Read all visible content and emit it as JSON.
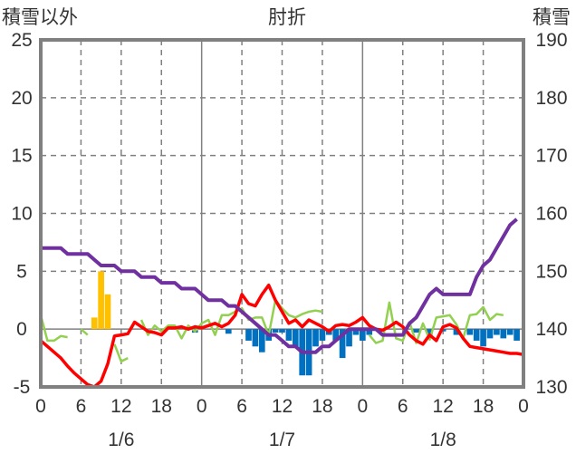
{
  "chart_data": {
    "type": "bar+line",
    "title": "肘折",
    "left_axis_label": "積雪以外",
    "right_axis_label": "積雪",
    "left_ylim": [
      -5,
      25
    ],
    "left_yticks": [
      -5,
      0,
      5,
      10,
      15,
      20,
      25
    ],
    "right_ylim": [
      130,
      190
    ],
    "right_yticks": [
      130,
      140,
      150,
      160,
      170,
      180,
      190
    ],
    "x_hours_range": [
      0,
      72
    ],
    "x_tick_labels": [
      "0",
      "6",
      "12",
      "18",
      "0",
      "6",
      "12",
      "18",
      "0",
      "6",
      "12",
      "18",
      "0"
    ],
    "date_labels": [
      {
        "label": "1/6",
        "hour": 12
      },
      {
        "label": "1/7",
        "hour": 36
      },
      {
        "label": "1/8",
        "hour": 60
      }
    ],
    "grid": true,
    "colors": {
      "snowfall": "#ffc000",
      "snow_depth_change": "#0070c0",
      "temperature": "#ff0000",
      "precip_line": "#92d050",
      "snow_depth": "#7030a0",
      "axis": "#808080",
      "grid": "#808080"
    },
    "snowfall_bars": [
      {
        "hour": 8,
        "value": 1
      },
      {
        "hour": 9,
        "value": 5
      },
      {
        "hour": 10,
        "value": 3
      }
    ],
    "snow_depth_change_bars": [
      {
        "hour": 23,
        "value": -0.3
      },
      {
        "hour": 28,
        "value": -0.4
      },
      {
        "hour": 31,
        "value": -1.0
      },
      {
        "hour": 32,
        "value": -1.5
      },
      {
        "hour": 33,
        "value": -2.0
      },
      {
        "hour": 34,
        "value": -1.0
      },
      {
        "hour": 35,
        "value": -0.3
      },
      {
        "hour": 36,
        "value": -0.3
      },
      {
        "hour": 37,
        "value": -1.0
      },
      {
        "hour": 38,
        "value": -1.5
      },
      {
        "hour": 39,
        "value": -4.0
      },
      {
        "hour": 40,
        "value": -4.0
      },
      {
        "hour": 41,
        "value": -1.5
      },
      {
        "hour": 42,
        "value": -1.0
      },
      {
        "hour": 43,
        "value": -0.5
      },
      {
        "hour": 44,
        "value": -1.0
      },
      {
        "hour": 45,
        "value": -2.5
      },
      {
        "hour": 46,
        "value": -1.5
      },
      {
        "hour": 47,
        "value": -0.5
      },
      {
        "hour": 48,
        "value": -1.0
      },
      {
        "hour": 49,
        "value": -0.5
      },
      {
        "hour": 56,
        "value": -0.3
      },
      {
        "hour": 58,
        "value": -0.5
      },
      {
        "hour": 60,
        "value": -0.2
      },
      {
        "hour": 62,
        "value": -0.5
      },
      {
        "hour": 64,
        "value": -0.5
      },
      {
        "hour": 65,
        "value": -1.0
      },
      {
        "hour": 66,
        "value": -1.5
      },
      {
        "hour": 67,
        "value": -0.8
      },
      {
        "hour": 68,
        "value": -0.5
      },
      {
        "hour": 69,
        "value": -0.8
      },
      {
        "hour": 70,
        "value": -0.5
      },
      {
        "hour": 71,
        "value": -1.0
      }
    ],
    "temperature": [
      [
        0,
        -1
      ],
      [
        1,
        -1.5
      ],
      [
        2,
        -2
      ],
      [
        3,
        -2.5
      ],
      [
        4,
        -3.2
      ],
      [
        5,
        -3.8
      ],
      [
        6,
        -4.3
      ],
      [
        7,
        -4.8
      ],
      [
        8,
        -5
      ],
      [
        9,
        -4.5
      ],
      [
        10,
        -3
      ],
      [
        11,
        -0.6
      ],
      [
        12,
        -0.5
      ],
      [
        13,
        -0.4
      ],
      [
        14,
        0.6
      ],
      [
        15,
        0.2
      ],
      [
        16,
        -0.2
      ],
      [
        17,
        -0.3
      ],
      [
        18,
        -0.5
      ],
      [
        19,
        0.1
      ],
      [
        20,
        0.1
      ],
      [
        21,
        0.2
      ],
      [
        22,
        0
      ],
      [
        23,
        0.2
      ],
      [
        24,
        0.1
      ],
      [
        25,
        0.3
      ],
      [
        26,
        0.5
      ],
      [
        27,
        0.2
      ],
      [
        28,
        0.5
      ],
      [
        29,
        1.2
      ],
      [
        30,
        3.0
      ],
      [
        31,
        2.2
      ],
      [
        32,
        2.0
      ],
      [
        33,
        3.0
      ],
      [
        34,
        3.8
      ],
      [
        35,
        2.5
      ],
      [
        36,
        1.5
      ],
      [
        37,
        0.5
      ],
      [
        38,
        0.8
      ],
      [
        39,
        0.2
      ],
      [
        40,
        0.8
      ],
      [
        41,
        0.5
      ],
      [
        42,
        0.2
      ],
      [
        43,
        -0.2
      ],
      [
        44,
        0.3
      ],
      [
        45,
        0.4
      ],
      [
        46,
        0.3
      ],
      [
        47,
        0.6
      ],
      [
        48,
        1.0
      ],
      [
        49,
        0.3
      ],
      [
        50,
        0.0
      ],
      [
        51,
        -0.1
      ],
      [
        52,
        0.2
      ],
      [
        53,
        0.6
      ],
      [
        54,
        0.2
      ],
      [
        55,
        -0.5
      ],
      [
        56,
        -1.0
      ],
      [
        57,
        -1.3
      ],
      [
        58,
        -0.5
      ],
      [
        59,
        -1.0
      ],
      [
        60,
        0.2
      ],
      [
        61,
        0.4
      ],
      [
        62,
        0.1
      ],
      [
        63,
        -0.8
      ],
      [
        64,
        -1.5
      ],
      [
        65,
        -1.6
      ],
      [
        66,
        -1.7
      ],
      [
        67,
        -1.8
      ],
      [
        68,
        -1.9
      ],
      [
        69,
        -2.0
      ],
      [
        70,
        -2.1
      ],
      [
        71,
        -2.1
      ],
      [
        72,
        -2.2
      ]
    ],
    "precip_line": [
      [
        [
          0,
          1.2
        ],
        [
          1,
          -1.0
        ],
        [
          2,
          -1.0
        ],
        [
          3,
          -0.6
        ],
        [
          4,
          -0.7
        ]
      ],
      [
        [
          6,
          0
        ],
        [
          7,
          -0.5
        ]
      ],
      [
        [
          11,
          -1.3
        ],
        [
          12,
          -2.8
        ],
        [
          13,
          -2.5
        ]
      ],
      [
        [
          15,
          0.8
        ],
        [
          16,
          -0.5
        ],
        [
          17,
          0.3
        ],
        [
          18,
          -0.2
        ],
        [
          19,
          0.3
        ],
        [
          20,
          0.3
        ],
        [
          21,
          -0.8
        ],
        [
          22,
          0.3
        ],
        [
          23,
          -0.2
        ],
        [
          24,
          0.5
        ],
        [
          25,
          0.8
        ],
        [
          26,
          -0.5
        ],
        [
          27,
          1.2
        ],
        [
          28,
          1.2
        ],
        [
          29,
          1.5
        ],
        [
          30,
          1.8
        ],
        [
          31,
          0.8
        ],
        [
          32,
          1.0
        ],
        [
          33,
          1.0
        ],
        [
          34,
          -0.5
        ],
        [
          35,
          2.5
        ],
        [
          36,
          1.8
        ],
        [
          37,
          1.2
        ],
        [
          38,
          1.0
        ],
        [
          39,
          1.3
        ],
        [
          40,
          1.5
        ],
        [
          41,
          1.6
        ],
        [
          42,
          1.5
        ]
      ],
      [
        [
          49,
          -0.5
        ],
        [
          50,
          -1.2
        ],
        [
          51,
          -1.0
        ],
        [
          52,
          2.3
        ],
        [
          53,
          -0.8
        ],
        [
          54,
          -1.0
        ],
        [
          55,
          0.6
        ],
        [
          56,
          -1.2
        ],
        [
          57,
          0.5
        ],
        [
          58,
          -0.9
        ],
        [
          59,
          1.0
        ],
        [
          60,
          1.1
        ],
        [
          61,
          1.2
        ],
        [
          62,
          0.4
        ],
        [
          63,
          -0.8
        ],
        [
          64,
          1.2
        ],
        [
          65,
          1.3
        ],
        [
          66,
          1.9
        ],
        [
          67,
          0.8
        ],
        [
          68,
          1.3
        ],
        [
          69,
          1.2
        ]
      ]
    ],
    "snow_depth": [
      [
        0,
        154
      ],
      [
        1,
        154
      ],
      [
        2,
        154
      ],
      [
        3,
        154
      ],
      [
        4,
        153
      ],
      [
        5,
        153
      ],
      [
        6,
        153
      ],
      [
        7,
        153
      ],
      [
        8,
        152
      ],
      [
        9,
        151
      ],
      [
        10,
        151
      ],
      [
        11,
        151
      ],
      [
        12,
        150
      ],
      [
        13,
        150
      ],
      [
        14,
        150
      ],
      [
        15,
        149
      ],
      [
        16,
        149
      ],
      [
        17,
        149
      ],
      [
        18,
        148
      ],
      [
        19,
        148
      ],
      [
        20,
        148
      ],
      [
        21,
        147
      ],
      [
        22,
        147
      ],
      [
        23,
        147
      ],
      [
        24,
        146
      ],
      [
        25,
        145
      ],
      [
        26,
        145
      ],
      [
        27,
        145
      ],
      [
        28,
        144
      ],
      [
        29,
        144
      ],
      [
        30,
        143
      ],
      [
        31,
        142
      ],
      [
        32,
        141
      ],
      [
        33,
        140
      ],
      [
        34,
        139
      ],
      [
        35,
        139
      ],
      [
        36,
        138
      ],
      [
        37,
        137
      ],
      [
        38,
        137
      ],
      [
        39,
        136
      ],
      [
        40,
        136
      ],
      [
        41,
        136
      ],
      [
        42,
        137
      ],
      [
        43,
        137
      ],
      [
        44,
        138
      ],
      [
        45,
        139
      ],
      [
        46,
        140
      ],
      [
        47,
        140
      ],
      [
        48,
        140
      ],
      [
        49,
        140
      ],
      [
        50,
        140
      ],
      [
        51,
        139
      ],
      [
        52,
        139
      ],
      [
        53,
        139
      ],
      [
        54,
        139
      ],
      [
        55,
        141
      ],
      [
        56,
        142
      ],
      [
        57,
        144
      ],
      [
        58,
        146
      ],
      [
        59,
        147
      ],
      [
        60,
        146
      ],
      [
        61,
        146
      ],
      [
        62,
        146
      ],
      [
        63,
        146
      ],
      [
        64,
        146
      ],
      [
        65,
        149
      ],
      [
        66,
        151
      ],
      [
        67,
        152
      ],
      [
        68,
        154
      ],
      [
        69,
        156
      ],
      [
        70,
        158
      ],
      [
        71,
        159
      ]
    ]
  }
}
